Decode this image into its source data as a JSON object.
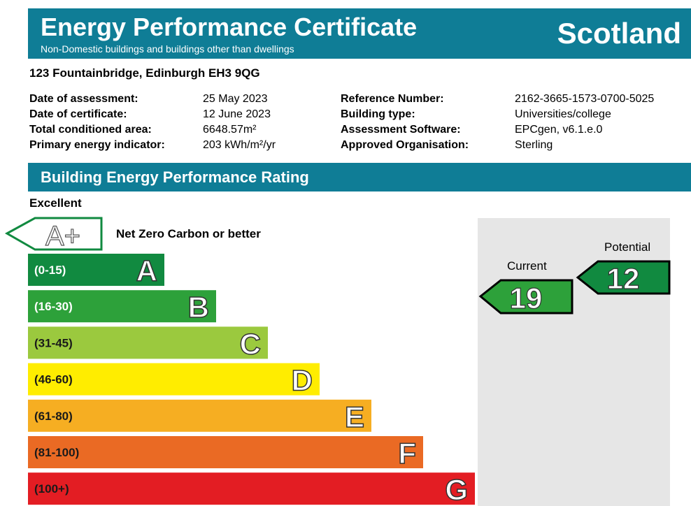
{
  "header": {
    "title": "Energy Performance Certificate",
    "subtitle": "Non-Domestic buildings and buildings other than dwellings",
    "country": "Scotland"
  },
  "address": "123 Fountainbridge, Edinburgh EH3 9QG",
  "details_left": [
    {
      "label": "Date of assessment:",
      "value": "25 May 2023"
    },
    {
      "label": "Date of certificate:",
      "value": "12 June 2023"
    },
    {
      "label": "Total conditioned area:",
      "value": "6648.57m²"
    },
    {
      "label": "Primary energy indicator:",
      "value": "203 kWh/m²/yr"
    }
  ],
  "details_right": [
    {
      "label": "Reference Number:",
      "value": "2162-3665-1573-0700-5025"
    },
    {
      "label": "Building type:",
      "value": "Universities/college"
    },
    {
      "label": "Assessment Software:",
      "value": "EPCgen, v6.1.e.0"
    },
    {
      "label": "Approved Organisation:",
      "value": "Sterling"
    }
  ],
  "section_title": "Building Energy Performance Rating",
  "scale_top_label": "Excellent",
  "net_zero": {
    "band": "A+",
    "label": "Net Zero Carbon or better"
  },
  "bands": [
    {
      "letter": "A",
      "range": "(0-15)",
      "color": "#118a40",
      "range_color": "#ffffff"
    },
    {
      "letter": "B",
      "range": "(16-30)",
      "color": "#2da13a",
      "range_color": "#ffffff"
    },
    {
      "letter": "C",
      "range": "(31-45)",
      "color": "#9bc93e",
      "range_color": "#1a1a1a"
    },
    {
      "letter": "D",
      "range": "(46-60)",
      "color": "#ffed00",
      "range_color": "#1a1a1a"
    },
    {
      "letter": "E",
      "range": "(61-80)",
      "color": "#f6ae22",
      "range_color": "#1a1a1a"
    },
    {
      "letter": "F",
      "range": "(81-100)",
      "color": "#ea6a24",
      "range_color": "#1a1a1a"
    },
    {
      "letter": "G",
      "range": "(100+)",
      "color": "#e31d23",
      "range_color": "#1a1a1a"
    }
  ],
  "current": {
    "label": "Current",
    "value": "19",
    "color": "#2da13a"
  },
  "potential": {
    "label": "Potential",
    "value": "12",
    "color": "#118a40"
  }
}
